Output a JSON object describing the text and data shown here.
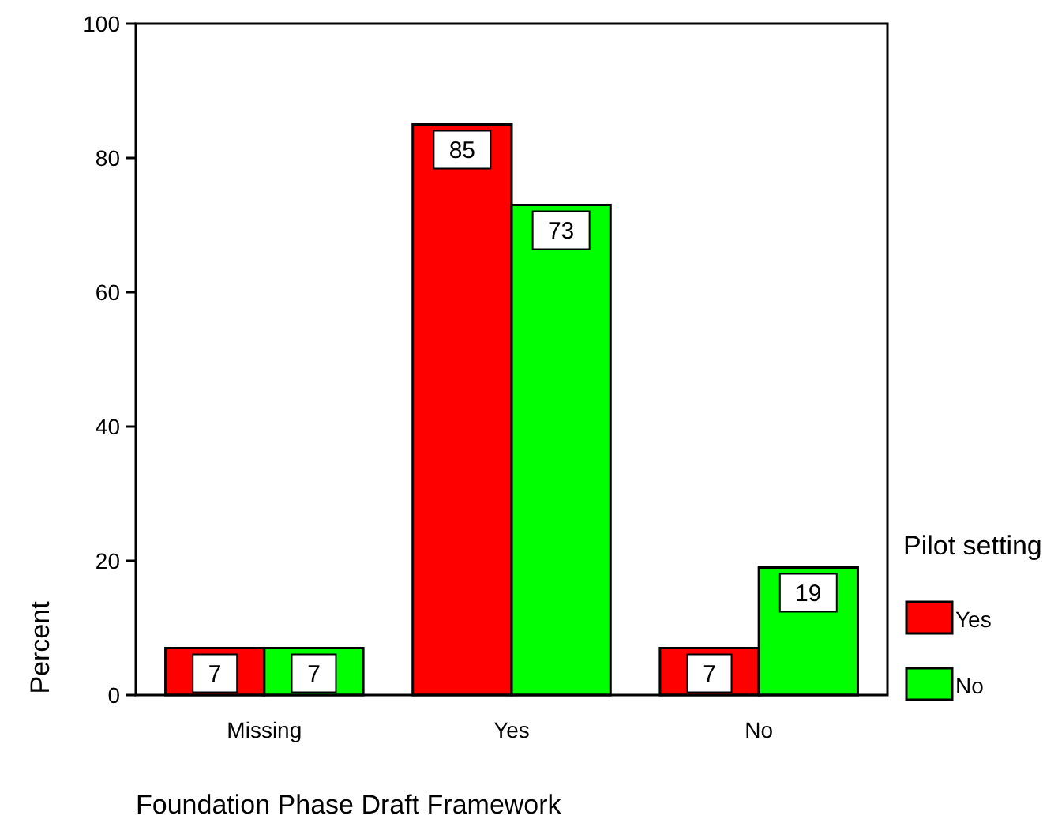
{
  "chart_data": {
    "type": "bar",
    "xlabel": "Foundation Phase Draft Framework",
    "ylabel": "Percent",
    "legend_title": "Pilot setting",
    "categories": [
      "Missing",
      "Yes",
      "No"
    ],
    "series": [
      {
        "name": "Yes",
        "color": "#ff0000",
        "values": [
          7,
          85,
          7
        ]
      },
      {
        "name": "No",
        "color": "#00ff00",
        "values": [
          7,
          73,
          19
        ]
      }
    ],
    "ylim": [
      0,
      100
    ],
    "yticks": [
      0,
      20,
      40,
      60,
      80,
      100
    ],
    "data_labels": true,
    "legend": "right",
    "grid": false
  }
}
